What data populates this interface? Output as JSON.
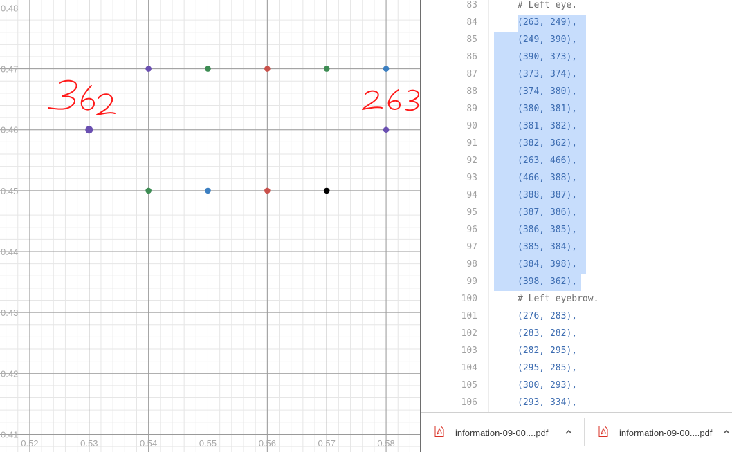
{
  "graph": {
    "x_tick_labels": [
      "0.52",
      "0.53",
      "0.54",
      "0.55",
      "0.56",
      "0.57",
      "0.58"
    ],
    "y_tick_labels": [
      "0.48",
      "0.47",
      "0.46",
      "0.45",
      "0.44",
      "0.43",
      "0.42",
      "0.41"
    ],
    "x_range": [
      0.515,
      0.5857
    ],
    "y_range": [
      0.4071,
      0.4813
    ],
    "colors": {
      "purple": "#6a4fb1",
      "green": "#3d8c53",
      "red": "#c9514b",
      "blue": "#3c7fc1",
      "black": "#000000",
      "annotation": "#ff1a1a"
    },
    "points": [
      {
        "x": 0.53,
        "y": 0.46,
        "color": "purple",
        "emphasis": true
      },
      {
        "x": 0.54,
        "y": 0.47,
        "color": "purple"
      },
      {
        "x": 0.55,
        "y": 0.47,
        "color": "green"
      },
      {
        "x": 0.56,
        "y": 0.47,
        "color": "red"
      },
      {
        "x": 0.57,
        "y": 0.47,
        "color": "green"
      },
      {
        "x": 0.58,
        "y": 0.47,
        "color": "blue"
      },
      {
        "x": 0.58,
        "y": 0.46,
        "color": "purple"
      },
      {
        "x": 0.54,
        "y": 0.45,
        "color": "green"
      },
      {
        "x": 0.55,
        "y": 0.45,
        "color": "blue"
      },
      {
        "x": 0.56,
        "y": 0.45,
        "color": "red"
      },
      {
        "x": 0.57,
        "y": 0.45,
        "color": "black"
      }
    ],
    "annotations": [
      "362",
      "263"
    ]
  },
  "code": {
    "lines": [
      {
        "num": "83",
        "text": "# Left eye.",
        "comment": true
      },
      {
        "num": "84",
        "text": "(263, 249),",
        "hl": "narrow"
      },
      {
        "num": "85",
        "text": "(249, 390),",
        "hl": "wide"
      },
      {
        "num": "86",
        "text": "(390, 373),",
        "hl": "wide"
      },
      {
        "num": "87",
        "text": "(373, 374),",
        "hl": "wide"
      },
      {
        "num": "88",
        "text": "(374, 380),",
        "hl": "wide"
      },
      {
        "num": "89",
        "text": "(380, 381),",
        "hl": "wide"
      },
      {
        "num": "90",
        "text": "(381, 382),",
        "hl": "wide"
      },
      {
        "num": "91",
        "text": "(382, 362),",
        "hl": "wide"
      },
      {
        "num": "92",
        "text": "(263, 466),",
        "hl": "wide"
      },
      {
        "num": "93",
        "text": "(466, 388),",
        "hl": "wide"
      },
      {
        "num": "94",
        "text": "(388, 387),",
        "hl": "wide"
      },
      {
        "num": "95",
        "text": "(387, 386),",
        "hl": "wide"
      },
      {
        "num": "96",
        "text": "(386, 385),",
        "hl": "wide"
      },
      {
        "num": "97",
        "text": "(385, 384),",
        "hl": "wide"
      },
      {
        "num": "98",
        "text": "(384, 398),",
        "hl": "wide"
      },
      {
        "num": "99",
        "text": "(398, 362),",
        "hl": "last"
      },
      {
        "num": "100",
        "text": "# Left eyebrow.",
        "comment": true
      },
      {
        "num": "101",
        "text": "(276, 283),"
      },
      {
        "num": "102",
        "text": "(283, 282),"
      },
      {
        "num": "103",
        "text": "(282, 295),"
      },
      {
        "num": "104",
        "text": "(295, 285),"
      },
      {
        "num": "105",
        "text": "(300, 293),"
      },
      {
        "num": "106",
        "text": "(293, 334),"
      }
    ]
  },
  "downloads": [
    {
      "name": "information-09-00....pdf",
      "icon": "pdf-icon"
    },
    {
      "name": "information-09-00....pdf",
      "icon": "pdf-icon"
    }
  ]
}
